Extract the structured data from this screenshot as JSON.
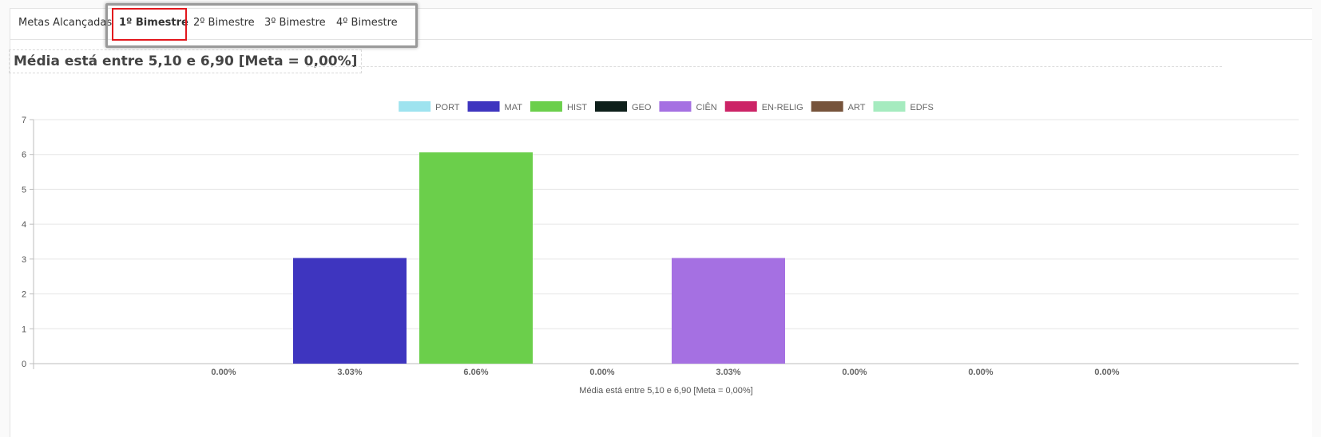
{
  "tabs": [
    {
      "label": "Metas Alcançadas",
      "active": false
    },
    {
      "label": "1º Bimestre",
      "active": true
    },
    {
      "label": "2º Bimestre",
      "active": false
    },
    {
      "label": "3º Bimestre",
      "active": false
    },
    {
      "label": "4º Bimestre",
      "active": false
    }
  ],
  "chart_data": {
    "type": "bar",
    "title": "Média está entre 5,10 e 6,90 [Meta = 0,00%]",
    "xlabel": "Média está entre 5,10 e 6,90 [Meta = 0,00%]",
    "ylabel": "",
    "ylim": [
      0,
      7
    ],
    "yticks": [
      "0",
      "1",
      "2",
      "3",
      "4",
      "5",
      "6",
      "7"
    ],
    "grid": true,
    "legend_position": "top",
    "series": [
      {
        "name": "PORT",
        "color": "#9ee3ef",
        "value": 0,
        "label": "0.00%"
      },
      {
        "name": "MAT",
        "color": "#3e35bf",
        "value": 3.03,
        "label": "3.03%"
      },
      {
        "name": "HIST",
        "color": "#6bcf4b",
        "value": 6.06,
        "label": "6.06%"
      },
      {
        "name": "GEO",
        "color": "#0e1f1a",
        "value": 0,
        "label": "0.00%"
      },
      {
        "name": "CIÊN",
        "color": "#a570e2",
        "value": 3.03,
        "label": "3.03%"
      },
      {
        "name": "EN-RELIG",
        "color": "#cc2366",
        "value": 0,
        "label": "0.00%"
      },
      {
        "name": "ART",
        "color": "#76533b",
        "value": 0,
        "label": "0.00%"
      },
      {
        "name": "EDFS",
        "color": "#a5ebbf",
        "value": 0,
        "label": "0.00%"
      }
    ]
  }
}
